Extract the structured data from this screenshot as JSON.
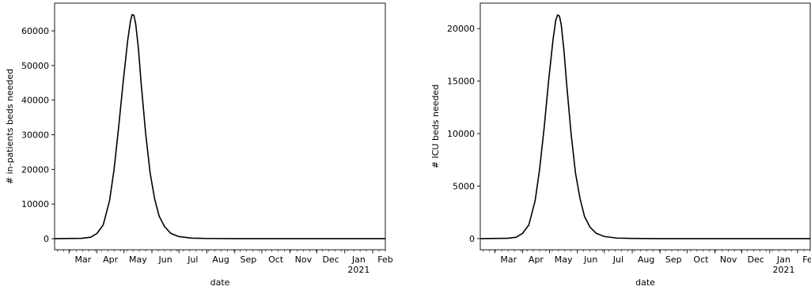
{
  "chart_data": [
    {
      "type": "line",
      "title": "",
      "xlabel": "date",
      "ylabel": "# in-patients beds needed",
      "x_range": [
        "2020-02-14",
        "2021-02-15"
      ],
      "ylim": [
        -3200,
        68000
      ],
      "grid": false,
      "y_ticks": [
        0,
        10000,
        20000,
        30000,
        40000,
        50000,
        60000
      ],
      "y_tick_labels": [
        "0",
        "10000",
        "20000",
        "30000",
        "40000",
        "50000",
        "60000"
      ],
      "x_tick_labels": [
        {
          "date": "2020-03-01",
          "text": "Mar"
        },
        {
          "date": "2020-04-01",
          "text": "Apr"
        },
        {
          "date": "2020-05-01",
          "text": "May"
        },
        {
          "date": "2020-06-01",
          "text": "Jun"
        },
        {
          "date": "2020-07-01",
          "text": "Jul"
        },
        {
          "date": "2020-08-01",
          "text": "Aug"
        },
        {
          "date": "2020-09-01",
          "text": "Sep"
        },
        {
          "date": "2020-10-01",
          "text": "Oct"
        },
        {
          "date": "2020-11-01",
          "text": "Nov"
        },
        {
          "date": "2020-12-01",
          "text": "Dec"
        },
        {
          "date": "2021-01-01",
          "text": "Jan",
          "subtext": "2021"
        },
        {
          "date": "2021-02-01",
          "text": "Feb"
        }
      ],
      "series": [
        {
          "x": [
            "2020-02-14",
            "2020-03-15",
            "2020-03-25",
            "2020-04-01",
            "2020-04-08",
            "2020-04-15",
            "2020-04-20",
            "2020-04-25",
            "2020-04-30",
            "2020-05-05",
            "2020-05-08",
            "2020-05-10",
            "2020-05-12",
            "2020-05-14",
            "2020-05-17",
            "2020-05-20",
            "2020-05-25",
            "2020-05-30",
            "2020-06-04",
            "2020-06-09",
            "2020-06-15",
            "2020-06-22",
            "2020-07-01",
            "2020-07-15",
            "2020-08-01",
            "2020-09-01",
            "2021-02-15"
          ],
          "values": [
            0,
            100,
            400,
            1500,
            4000,
            11000,
            20000,
            32000,
            45000,
            57000,
            62500,
            64700,
            64500,
            62000,
            55000,
            45000,
            30500,
            19000,
            11500,
            6500,
            3500,
            1500,
            600,
            150,
            50,
            0,
            0
          ]
        }
      ]
    },
    {
      "type": "line",
      "title": "",
      "xlabel": "date",
      "ylabel": "# ICU beds needed",
      "x_range": [
        "2020-02-14",
        "2021-02-15"
      ],
      "ylim": [
        -1060,
        22420
      ],
      "grid": false,
      "y_ticks": [
        0,
        5000,
        10000,
        15000,
        20000
      ],
      "y_tick_labels": [
        "0",
        "5000",
        "10000",
        "15000",
        "20000"
      ],
      "x_tick_labels": [
        {
          "date": "2020-03-01",
          "text": "Mar"
        },
        {
          "date": "2020-04-01",
          "text": "Apr"
        },
        {
          "date": "2020-05-01",
          "text": "May"
        },
        {
          "date": "2020-06-01",
          "text": "Jun"
        },
        {
          "date": "2020-07-01",
          "text": "Jul"
        },
        {
          "date": "2020-08-01",
          "text": "Aug"
        },
        {
          "date": "2020-09-01",
          "text": "Sep"
        },
        {
          "date": "2020-10-01",
          "text": "Oct"
        },
        {
          "date": "2020-11-01",
          "text": "Nov"
        },
        {
          "date": "2020-12-01",
          "text": "Dec"
        },
        {
          "date": "2021-01-01",
          "text": "Jan",
          "subtext": "2021"
        },
        {
          "date": "2021-02-01",
          "text": "Feb"
        }
      ],
      "series": [
        {
          "x": [
            "2020-02-14",
            "2020-03-15",
            "2020-03-25",
            "2020-04-01",
            "2020-04-08",
            "2020-04-15",
            "2020-04-20",
            "2020-04-25",
            "2020-04-30",
            "2020-05-05",
            "2020-05-08",
            "2020-05-10",
            "2020-05-12",
            "2020-05-14",
            "2020-05-17",
            "2020-05-20",
            "2020-05-25",
            "2020-05-30",
            "2020-06-04",
            "2020-06-09",
            "2020-06-15",
            "2020-06-22",
            "2020-07-01",
            "2020-07-15",
            "2020-08-01",
            "2020-09-01",
            "2021-02-15"
          ],
          "values": [
            0,
            30,
            130,
            500,
            1300,
            3600,
            6600,
            10500,
            15000,
            19000,
            20800,
            21300,
            21200,
            20400,
            18000,
            14800,
            10000,
            6200,
            3800,
            2100,
            1100,
            500,
            200,
            50,
            20,
            0,
            0
          ]
        }
      ]
    }
  ]
}
